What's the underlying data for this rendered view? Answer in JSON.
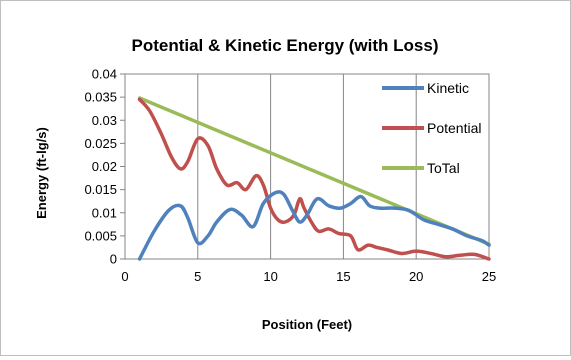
{
  "chart_data": {
    "type": "line",
    "title": "Potential & Kinetic Energy (with Loss)",
    "xlabel": "Position (Feet)",
    "ylabel": "Energy (ft-lg/s)",
    "xlim": [
      0,
      25
    ],
    "ylim": [
      0,
      0.04
    ],
    "xticks": [
      "0",
      "5",
      "10",
      "15",
      "20",
      "25"
    ],
    "yticks": [
      "0",
      "0.005",
      "0.01",
      "0.015",
      "0.02",
      "0.025",
      "0.03",
      "0.035",
      "0.04"
    ],
    "grid": "vertical",
    "legend_position": "right",
    "series": [
      {
        "name": "Kinetic",
        "color": "#4f81bd",
        "x": [
          1,
          2,
          3,
          3.8,
          4.3,
          5,
          5.7,
          6.3,
          7.2,
          8,
          8.8,
          9.5,
          10.3,
          10.9,
          11.5,
          12,
          12.5,
          13.2,
          14,
          14.8,
          15.5,
          16.2,
          16.8,
          17.5,
          18.5,
          19.5,
          20.5,
          21.5,
          22.5,
          23.5,
          24.5,
          25
        ],
        "y": [
          0,
          0.006,
          0.0105,
          0.0115,
          0.009,
          0.0035,
          0.005,
          0.008,
          0.0107,
          0.0095,
          0.007,
          0.012,
          0.0143,
          0.014,
          0.0105,
          0.008,
          0.0095,
          0.013,
          0.0115,
          0.011,
          0.012,
          0.0135,
          0.0115,
          0.011,
          0.011,
          0.0105,
          0.0085,
          0.0075,
          0.0065,
          0.005,
          0.004,
          0.003
        ]
      },
      {
        "name": "Potential",
        "color": "#c0504d",
        "x": [
          1,
          1.7,
          2.5,
          3.2,
          3.8,
          4.3,
          5,
          5.7,
          6.3,
          7,
          7.7,
          8.3,
          9,
          9.5,
          10,
          10.5,
          11,
          11.6,
          12,
          12.3,
          12.8,
          13.3,
          14,
          14.7,
          15.5,
          16,
          16.7,
          17.3,
          18,
          19,
          20,
          21,
          22,
          23,
          24,
          25
        ],
        "y": [
          0.0345,
          0.032,
          0.027,
          0.022,
          0.0195,
          0.021,
          0.026,
          0.0245,
          0.0195,
          0.016,
          0.0165,
          0.015,
          0.018,
          0.016,
          0.011,
          0.0085,
          0.008,
          0.0095,
          0.013,
          0.011,
          0.008,
          0.006,
          0.0065,
          0.0055,
          0.005,
          0.002,
          0.003,
          0.0025,
          0.002,
          0.0012,
          0.0017,
          0.0012,
          0.0005,
          0.0008,
          0.001,
          0
        ]
      },
      {
        "name": "ToTal",
        "color": "#9bbb59",
        "x": [
          1,
          25
        ],
        "y": [
          0.0348,
          0.0032
        ]
      }
    ]
  }
}
